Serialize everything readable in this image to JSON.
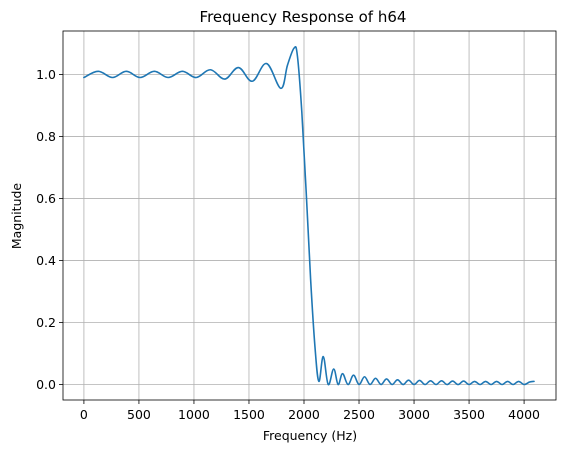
{
  "chart_data": {
    "type": "line",
    "title": "Frequency Response of h64",
    "xlabel": "Frequency (Hz)",
    "ylabel": "Magnitude",
    "xlim": [
      -190,
      4290
    ],
    "ylim": [
      -0.05,
      1.14
    ],
    "xticks": [
      0,
      500,
      1000,
      1500,
      2000,
      2500,
      3000,
      3500,
      4000
    ],
    "xtick_labels": [
      "0",
      "500",
      "1000",
      "1500",
      "2000",
      "2500",
      "3000",
      "3500",
      "4000"
    ],
    "yticks": [
      0.0,
      0.2,
      0.4,
      0.6,
      0.8,
      1.0
    ],
    "ytick_labels": [
      "0.0",
      "0.2",
      "0.4",
      "0.6",
      "0.8",
      "1.0"
    ],
    "grid": true,
    "legend": false,
    "series": [
      {
        "color": "#1f77b4",
        "x": [
          0,
          130,
          260,
          385,
          510,
          640,
          765,
          895,
          1020,
          1150,
          1280,
          1405,
          1530,
          1660,
          1790,
          1850,
          1910,
          1940,
          1980,
          2020,
          2060,
          2100,
          2135,
          2175,
          2220,
          2270,
          2310,
          2350,
          2400,
          2450,
          2500,
          2550,
          2600,
          2650,
          2700,
          2750,
          2800,
          2850,
          2900,
          2950,
          3000,
          3050,
          3100,
          3150,
          3200,
          3250,
          3300,
          3350,
          3400,
          3450,
          3500,
          3550,
          3600,
          3650,
          3700,
          3750,
          3800,
          3850,
          3900,
          3950,
          4000,
          4050,
          4090
        ],
        "y": [
          0.99,
          1.01,
          0.99,
          1.01,
          0.99,
          1.01,
          0.99,
          1.01,
          0.99,
          1.015,
          0.985,
          1.022,
          0.978,
          1.035,
          0.955,
          1.03,
          1.085,
          1.06,
          0.88,
          0.62,
          0.34,
          0.12,
          0.01,
          0.09,
          0.0,
          0.05,
          0.0,
          0.035,
          0.0,
          0.03,
          0.0,
          0.025,
          0.0,
          0.02,
          0.0,
          0.018,
          0.0,
          0.015,
          0.0,
          0.014,
          0.0,
          0.013,
          0.0,
          0.012,
          0.0,
          0.012,
          0.0,
          0.011,
          0.0,
          0.011,
          0.0,
          0.01,
          0.0,
          0.01,
          0.0,
          0.01,
          0.0,
          0.01,
          0.0,
          0.01,
          0.0,
          0.008,
          0.01
        ]
      }
    ]
  }
}
